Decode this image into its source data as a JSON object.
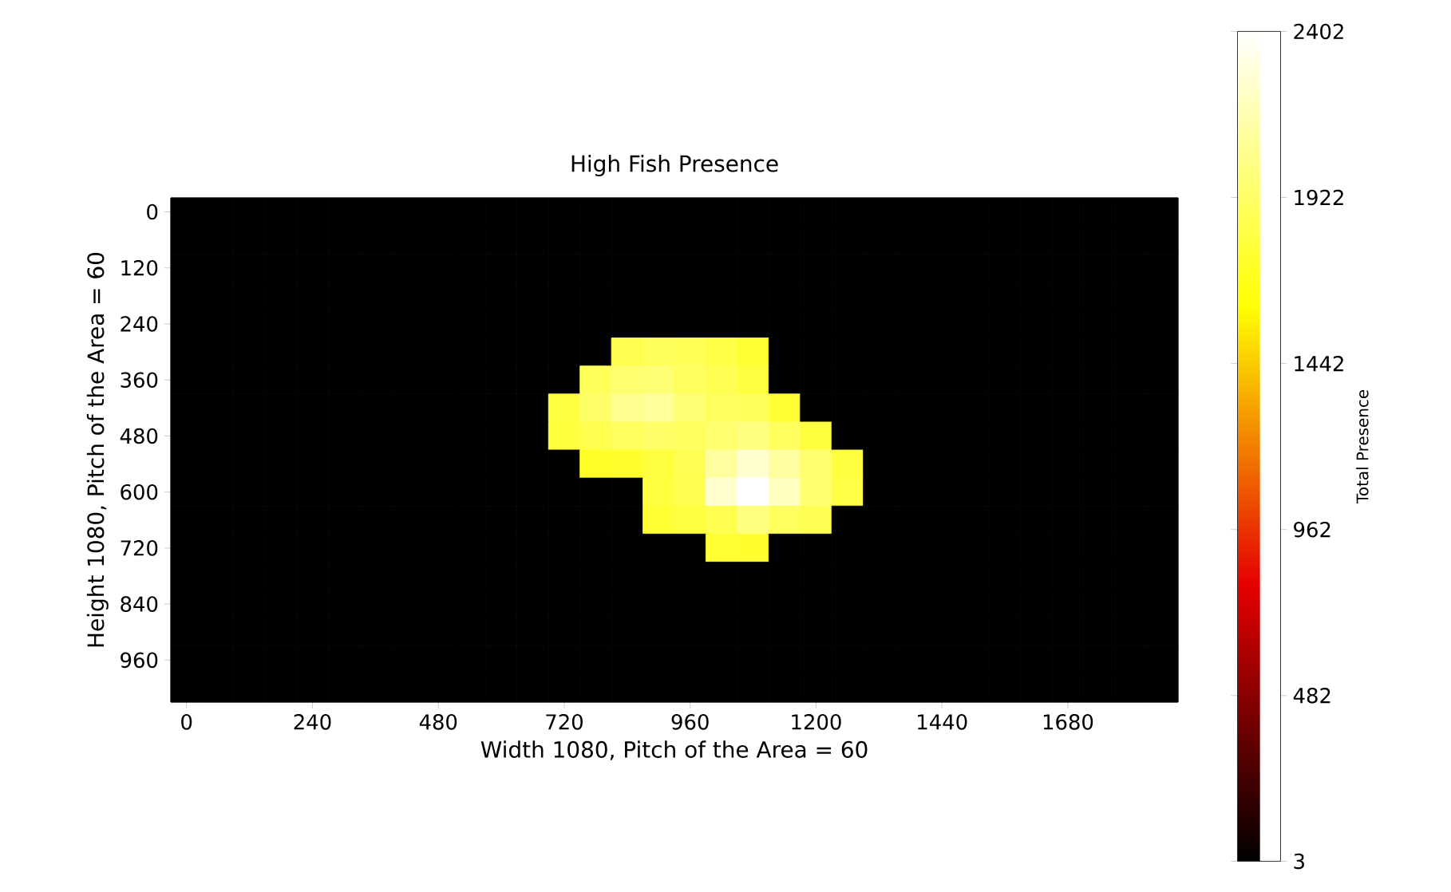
{
  "chart_data": {
    "type": "heatmap",
    "title": "High Fish Presence",
    "xlabel": "Width 1080, Pitch of the Area = 60",
    "ylabel": "Height 1080, Pitch of the Area = 60",
    "clabel": "Total Presence",
    "categories": [
      "0",
      null,
      null,
      null,
      "240",
      null,
      null,
      null,
      "480",
      null,
      null,
      null,
      "720",
      null,
      null,
      null,
      "960",
      null,
      null,
      null,
      "1200",
      null,
      null,
      null,
      "1440",
      null,
      null,
      null,
      "1680",
      null,
      null,
      null
    ],
    "y_categories": [
      "0",
      null,
      "120",
      null,
      "240",
      null,
      "360",
      null,
      "480",
      null,
      "600",
      null,
      "720",
      null,
      "840",
      null,
      "960",
      null
    ],
    "cells": [
      [
        3,
        3,
        3,
        3,
        3,
        3,
        3,
        3,
        3,
        3,
        3,
        3,
        3,
        3,
        3,
        3,
        3,
        3,
        3,
        3,
        3,
        3,
        3,
        3,
        3,
        3,
        3,
        3,
        3,
        3,
        3,
        3
      ],
      [
        3,
        3,
        3,
        3,
        3,
        3,
        3,
        3,
        3,
        3,
        3,
        3,
        3,
        3,
        3,
        3,
        3,
        3,
        3,
        3,
        3,
        3,
        3,
        3,
        3,
        3,
        3,
        3,
        3,
        3,
        3,
        3
      ],
      [
        3,
        3,
        3,
        3,
        3,
        3,
        3,
        3,
        3,
        3,
        3,
        3,
        3,
        3,
        3,
        3,
        3,
        3,
        3,
        3,
        3,
        3,
        3,
        3,
        3,
        3,
        3,
        3,
        3,
        3,
        3,
        3
      ],
      [
        3,
        3,
        3,
        3,
        3,
        3,
        3,
        3,
        3,
        3,
        3,
        3,
        3,
        3,
        3,
        3,
        3,
        3,
        3,
        3,
        3,
        3,
        3,
        3,
        3,
        3,
        3,
        3,
        3,
        3,
        3,
        3
      ],
      [
        3,
        3,
        3,
        3,
        3,
        3,
        3,
        3,
        3,
        3,
        3,
        3,
        3,
        3,
        3,
        3,
        3,
        3,
        3,
        3,
        3,
        3,
        3,
        3,
        3,
        3,
        3,
        3,
        3,
        3,
        3,
        3
      ],
      [
        3,
        3,
        3,
        3,
        3,
        3,
        3,
        3,
        3,
        3,
        3,
        3,
        3,
        3,
        1850,
        1880,
        1870,
        1820,
        1760,
        3,
        3,
        3,
        3,
        3,
        3,
        3,
        3,
        3,
        3,
        3,
        3,
        3
      ],
      [
        3,
        3,
        3,
        3,
        3,
        3,
        3,
        3,
        3,
        3,
        3,
        3,
        3,
        1880,
        1950,
        1960,
        1900,
        1860,
        1800,
        3,
        3,
        3,
        3,
        3,
        3,
        3,
        3,
        3,
        3,
        3,
        3,
        3
      ],
      [
        3,
        3,
        3,
        3,
        3,
        3,
        3,
        3,
        3,
        3,
        3,
        3,
        1800,
        1920,
        2050,
        2080,
        1960,
        1900,
        1880,
        1760,
        3,
        3,
        3,
        3,
        3,
        3,
        3,
        3,
        3,
        3,
        3,
        3
      ],
      [
        3,
        3,
        3,
        3,
        3,
        3,
        3,
        3,
        3,
        3,
        3,
        3,
        1790,
        1850,
        1900,
        1920,
        1900,
        1950,
        2000,
        1900,
        1790,
        3,
        3,
        3,
        3,
        3,
        3,
        3,
        3,
        3,
        3,
        3
      ],
      [
        3,
        3,
        3,
        3,
        3,
        3,
        3,
        3,
        3,
        3,
        3,
        3,
        3,
        1720,
        1740,
        1800,
        1860,
        2100,
        2250,
        2100,
        1950,
        1800,
        3,
        3,
        3,
        3,
        3,
        3,
        3,
        3,
        3,
        3
      ],
      [
        3,
        3,
        3,
        3,
        3,
        3,
        3,
        3,
        3,
        3,
        3,
        3,
        3,
        3,
        3,
        1800,
        1850,
        2250,
        2402,
        2200,
        1950,
        1820,
        3,
        3,
        3,
        3,
        3,
        3,
        3,
        3,
        3,
        3
      ],
      [
        3,
        3,
        3,
        3,
        3,
        3,
        3,
        3,
        3,
        3,
        3,
        3,
        3,
        3,
        3,
        1760,
        1800,
        1850,
        2000,
        1900,
        1860,
        3,
        3,
        3,
        3,
        3,
        3,
        3,
        3,
        3,
        3,
        3
      ],
      [
        3,
        3,
        3,
        3,
        3,
        3,
        3,
        3,
        3,
        3,
        3,
        3,
        3,
        3,
        3,
        3,
        3,
        1760,
        1750,
        3,
        3,
        3,
        3,
        3,
        3,
        3,
        3,
        3,
        3,
        3,
        3,
        3
      ],
      [
        3,
        3,
        3,
        3,
        3,
        3,
        3,
        3,
        3,
        3,
        3,
        3,
        3,
        3,
        3,
        3,
        3,
        3,
        3,
        3,
        3,
        3,
        3,
        3,
        3,
        3,
        3,
        3,
        3,
        3,
        3,
        3
      ],
      [
        3,
        3,
        3,
        3,
        3,
        3,
        3,
        3,
        3,
        3,
        3,
        3,
        3,
        3,
        3,
        3,
        3,
        3,
        3,
        3,
        3,
        3,
        3,
        3,
        3,
        3,
        3,
        3,
        3,
        3,
        3,
        3
      ],
      [
        3,
        3,
        3,
        3,
        3,
        3,
        3,
        3,
        3,
        3,
        3,
        3,
        3,
        3,
        3,
        3,
        3,
        3,
        3,
        3,
        3,
        3,
        3,
        3,
        3,
        3,
        3,
        3,
        3,
        3,
        3,
        3
      ],
      [
        3,
        3,
        3,
        3,
        3,
        3,
        3,
        3,
        3,
        3,
        3,
        3,
        3,
        3,
        3,
        3,
        3,
        3,
        3,
        3,
        3,
        3,
        3,
        3,
        3,
        3,
        3,
        3,
        3,
        3,
        3,
        3
      ],
      [
        3,
        3,
        3,
        3,
        3,
        3,
        3,
        3,
        3,
        3,
        3,
        3,
        3,
        3,
        3,
        3,
        3,
        3,
        3,
        3,
        3,
        3,
        3,
        3,
        3,
        3,
        3,
        3,
        3,
        3,
        3,
        3
      ]
    ],
    "clim": [
      3,
      2402
    ],
    "cticks": [
      3,
      482,
      962,
      1442,
      1922,
      2402
    ]
  }
}
